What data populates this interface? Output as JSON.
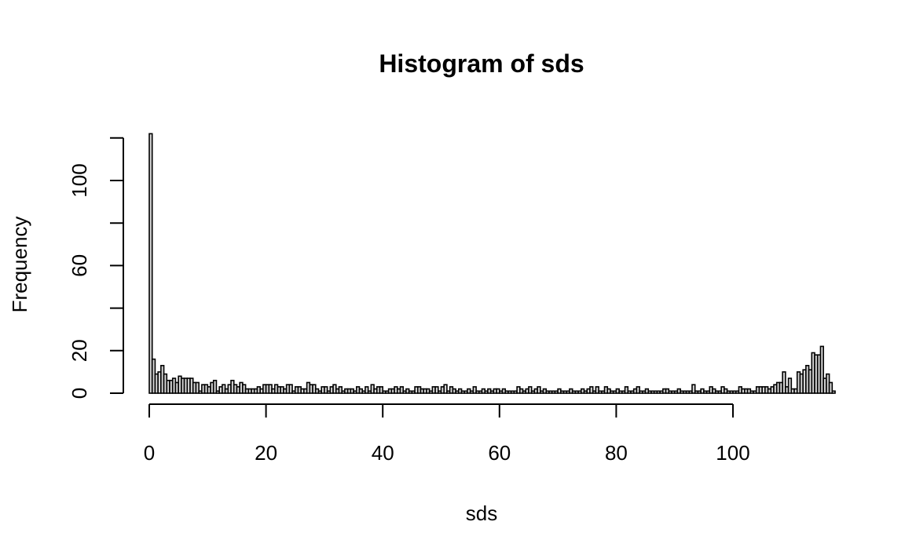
{
  "chart_data": {
    "type": "bar",
    "title": "Histogram of sds",
    "xlabel": "sds",
    "ylabel": "Frequency",
    "bin_width": 0.5,
    "x_start": 0,
    "xlim": [
      0,
      114
    ],
    "ylim": [
      0,
      122
    ],
    "x_ticks": [
      0,
      20,
      40,
      60,
      80,
      100
    ],
    "y_ticks": [
      0,
      20,
      40,
      60,
      80,
      100,
      120
    ],
    "y_tick_labels": [
      "0",
      "20",
      "",
      "60",
      "",
      "100",
      ""
    ],
    "grid": false,
    "legend": "none",
    "bar_fill": "#d3d3d3",
    "bar_stroke": "#000000",
    "values": [
      122,
      16,
      9,
      10,
      13,
      9,
      6,
      6,
      7,
      5,
      8,
      7,
      7,
      7,
      7,
      5,
      5,
      1,
      4,
      4,
      3,
      5,
      6,
      1,
      3,
      4,
      2,
      4,
      6,
      4,
      3,
      5,
      4,
      2,
      2,
      2,
      2,
      3,
      2,
      4,
      4,
      4,
      2,
      4,
      3,
      3,
      2,
      4,
      4,
      1,
      3,
      3,
      2,
      2,
      5,
      4,
      4,
      2,
      1,
      3,
      3,
      1,
      3,
      4,
      2,
      3,
      1,
      2,
      2,
      2,
      1,
      3,
      2,
      1,
      3,
      1,
      4,
      2,
      3,
      3,
      1,
      1,
      2,
      2,
      3,
      2,
      3,
      1,
      2,
      1,
      1,
      3,
      3,
      2,
      2,
      2,
      1,
      3,
      3,
      1,
      3,
      4,
      1,
      3,
      2,
      1,
      2,
      1,
      1,
      2,
      1,
      3,
      1,
      1,
      2,
      1,
      2,
      1,
      2,
      2,
      1,
      2,
      1,
      1,
      1,
      1,
      3,
      2,
      1,
      2,
      3,
      1,
      2,
      3,
      1,
      2,
      1,
      1,
      1,
      1,
      2,
      1,
      1,
      1,
      2,
      1,
      1,
      1,
      2,
      1,
      2,
      3,
      1,
      3,
      1,
      1,
      3,
      2,
      1,
      1,
      2,
      1,
      1,
      3,
      1,
      1,
      2,
      3,
      1,
      1,
      2,
      1,
      1,
      1,
      1,
      1,
      2,
      2,
      1,
      1,
      1,
      2,
      1,
      1,
      1,
      1,
      4,
      1,
      1,
      2,
      1,
      1,
      3,
      2,
      1,
      1,
      3,
      2,
      1,
      1,
      1,
      1,
      3,
      2,
      2,
      2,
      1,
      1,
      3,
      3,
      3,
      3,
      2,
      3,
      4,
      5,
      5,
      10,
      3,
      7,
      2,
      2,
      10,
      9,
      11,
      13,
      11,
      19,
      18,
      18,
      22,
      7,
      9,
      5,
      1
    ]
  }
}
